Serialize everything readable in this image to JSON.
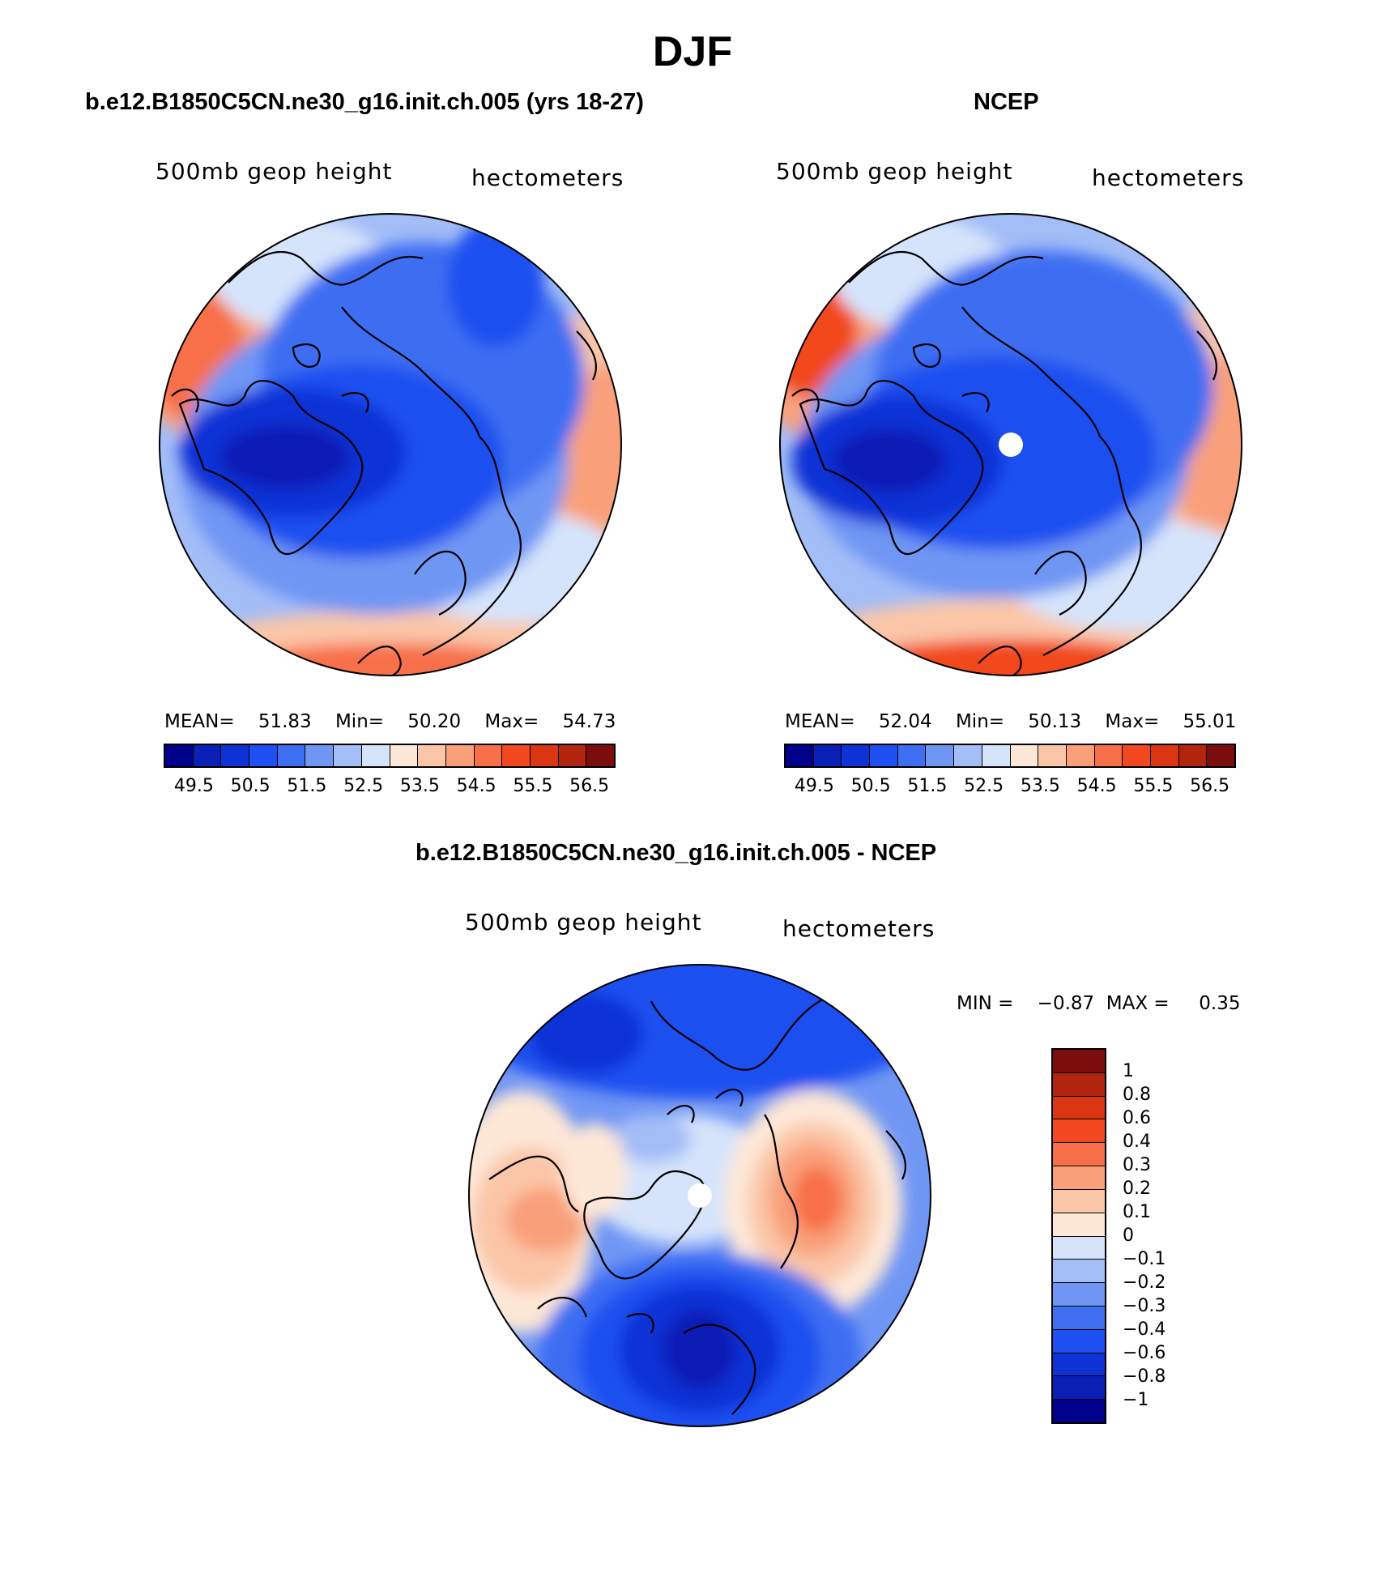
{
  "figure": {
    "title": "DJF"
  },
  "panels": [
    {
      "title": "b.e12.B1850C5CN.ne30_g16.init.ch.005 (yrs 18-27)",
      "left_label": "500mb geop height",
      "right_label": "hectometers",
      "stats": {
        "mean_label": "MEAN=",
        "mean": "51.83",
        "min_label": "Min=",
        "min": "50.20",
        "max_label": "Max=",
        "max": "54.73"
      },
      "colorbar_ticks": [
        "49.5",
        "50.5",
        "51.5",
        "52.5",
        "53.5",
        "54.5",
        "55.5",
        "56.5"
      ]
    },
    {
      "title": "NCEP",
      "left_label": "500mb geop height",
      "right_label": "hectometers",
      "stats": {
        "mean_label": "MEAN=",
        "mean": "52.04",
        "min_label": "Min=",
        "min": "50.13",
        "max_label": "Max=",
        "max": "55.01"
      },
      "colorbar_ticks": [
        "49.5",
        "50.5",
        "51.5",
        "52.5",
        "53.5",
        "54.5",
        "55.5",
        "56.5"
      ]
    },
    {
      "title": "b.e12.B1850C5CN.ne30_g16.init.ch.005 - NCEP",
      "left_label": "500mb geop height",
      "right_label": "hectometers",
      "stats": {
        "min_label": "MIN =",
        "min": "−0.87",
        "max_label": "MAX =",
        "max": "0.35"
      },
      "colorbar_ticks": [
        "1",
        "0.8",
        "0.6",
        "0.4",
        "0.3",
        "0.2",
        "0.1",
        "0",
        "−0.1",
        "−0.2",
        "−0.3",
        "−0.4",
        "−0.6",
        "−0.8",
        "−1"
      ]
    }
  ],
  "colors": {
    "abs_scale": [
      "#00008b",
      "#0a1fb5",
      "#0d33d6",
      "#1e4ff0",
      "#3e6ef2",
      "#7096f4",
      "#a3bdf7",
      "#d6e4fb",
      "#fde7d7",
      "#fbc6a8",
      "#f9a07a",
      "#f76f48",
      "#f2481f",
      "#db3612",
      "#b1250e",
      "#7c0d0d"
    ],
    "diff_scale": [
      "#7c0d0d",
      "#b1250e",
      "#db3612",
      "#f2481f",
      "#f76f48",
      "#f9a07a",
      "#fbc6a8",
      "#fde7d7",
      "#d6e4fb",
      "#a3bdf7",
      "#7096f4",
      "#3e6ef2",
      "#1e4ff0",
      "#0d33d6",
      "#0a1fb5",
      "#00008b"
    ]
  },
  "chart_data": [
    {
      "type": "heatmap",
      "projection": "north polar stereographic",
      "variable": "500mb geop height",
      "units": "hectometers",
      "summary": {
        "mean": 51.83,
        "min": 50.2,
        "max": 54.73
      },
      "contour_levels": [
        49.5,
        50.0,
        50.5,
        51.0,
        51.5,
        52.0,
        52.5,
        53.0,
        53.5,
        54.0,
        54.5,
        55.0,
        55.5,
        56.0,
        56.5
      ]
    },
    {
      "type": "heatmap",
      "projection": "north polar stereographic",
      "variable": "500mb geop height",
      "units": "hectometers",
      "summary": {
        "mean": 52.04,
        "min": 50.13,
        "max": 55.01
      },
      "contour_levels": [
        49.5,
        50.0,
        50.5,
        51.0,
        51.5,
        52.0,
        52.5,
        53.0,
        53.5,
        54.0,
        54.5,
        55.0,
        55.5,
        56.0,
        56.5
      ]
    },
    {
      "type": "heatmap",
      "projection": "north polar stereographic",
      "variable": "500mb geop height",
      "units": "hectometers",
      "summary": {
        "min": -0.87,
        "max": 0.35
      },
      "contour_levels": [
        -1,
        -0.8,
        -0.6,
        -0.4,
        -0.3,
        -0.2,
        -0.1,
        0,
        0.1,
        0.2,
        0.3,
        0.4,
        0.6,
        0.8,
        1
      ]
    }
  ]
}
